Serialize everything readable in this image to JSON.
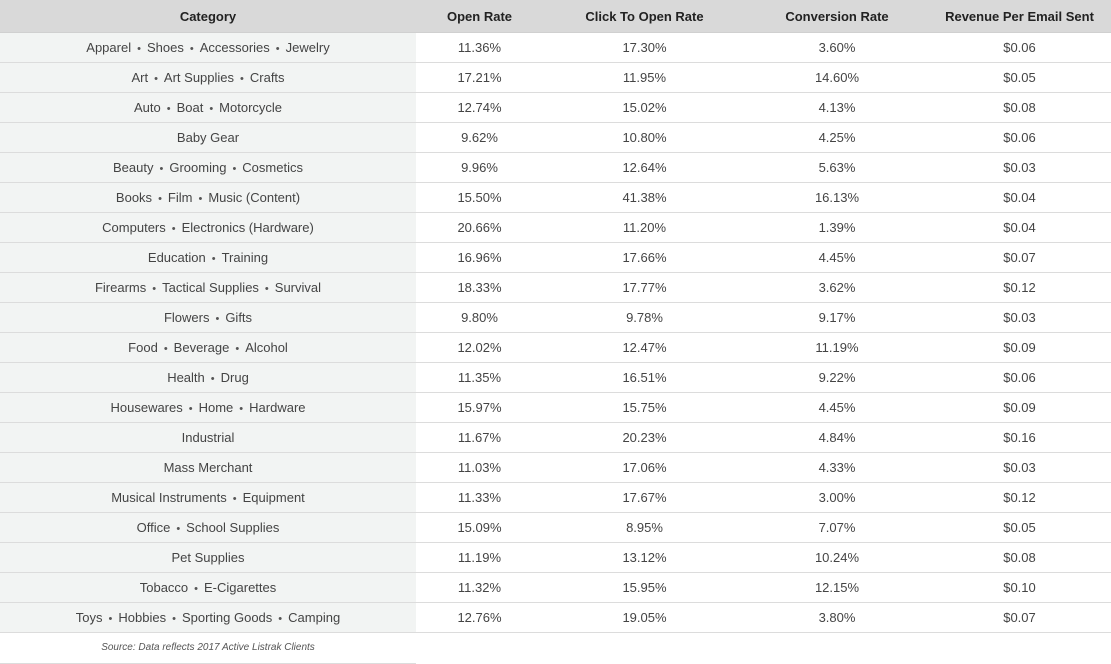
{
  "table": {
    "headers": [
      "Category",
      "Open Rate",
      "Click To Open Rate",
      "Conversion Rate",
      "Revenue Per Email Sent"
    ],
    "rows": [
      {
        "category": [
          "Apparel",
          "Shoes",
          "Accessories",
          "Jewelry"
        ],
        "open_rate": "11.36%",
        "ctor": "17.30%",
        "conversion": "3.60%",
        "revenue": "$0.06"
      },
      {
        "category": [
          "Art",
          "Art Supplies",
          "Crafts"
        ],
        "open_rate": "17.21%",
        "ctor": "11.95%",
        "conversion": "14.60%",
        "revenue": "$0.05"
      },
      {
        "category": [
          "Auto",
          "Boat",
          "Motorcycle"
        ],
        "open_rate": "12.74%",
        "ctor": "15.02%",
        "conversion": "4.13%",
        "revenue": "$0.08"
      },
      {
        "category": [
          "Baby Gear"
        ],
        "open_rate": "9.62%",
        "ctor": "10.80%",
        "conversion": "4.25%",
        "revenue": "$0.06"
      },
      {
        "category": [
          "Beauty",
          "Grooming",
          "Cosmetics"
        ],
        "open_rate": "9.96%",
        "ctor": "12.64%",
        "conversion": "5.63%",
        "revenue": "$0.03"
      },
      {
        "category": [
          "Books",
          "Film",
          "Music (Content)"
        ],
        "open_rate": "15.50%",
        "ctor": "41.38%",
        "conversion": "16.13%",
        "revenue": "$0.04"
      },
      {
        "category": [
          "Computers",
          "Electronics (Hardware)"
        ],
        "open_rate": "20.66%",
        "ctor": "11.20%",
        "conversion": "1.39%",
        "revenue": "$0.04"
      },
      {
        "category": [
          "Education",
          "Training"
        ],
        "open_rate": "16.96%",
        "ctor": "17.66%",
        "conversion": "4.45%",
        "revenue": "$0.07"
      },
      {
        "category": [
          "Firearms",
          "Tactical Supplies",
          "Survival"
        ],
        "open_rate": "18.33%",
        "ctor": "17.77%",
        "conversion": "3.62%",
        "revenue": "$0.12"
      },
      {
        "category": [
          "Flowers",
          "Gifts"
        ],
        "open_rate": "9.80%",
        "ctor": "9.78%",
        "conversion": "9.17%",
        "revenue": "$0.03"
      },
      {
        "category": [
          "Food",
          "Beverage",
          "Alcohol"
        ],
        "open_rate": "12.02%",
        "ctor": "12.47%",
        "conversion": "11.19%",
        "revenue": "$0.09"
      },
      {
        "category": [
          "Health",
          "Drug"
        ],
        "open_rate": "11.35%",
        "ctor": "16.51%",
        "conversion": "9.22%",
        "revenue": "$0.06"
      },
      {
        "category": [
          "Housewares",
          "Home",
          "Hardware"
        ],
        "open_rate": "15.97%",
        "ctor": "15.75%",
        "conversion": "4.45%",
        "revenue": "$0.09"
      },
      {
        "category": [
          "Industrial"
        ],
        "open_rate": "11.67%",
        "ctor": "20.23%",
        "conversion": "4.84%",
        "revenue": "$0.16"
      },
      {
        "category": [
          "Mass Merchant"
        ],
        "open_rate": "11.03%",
        "ctor": "17.06%",
        "conversion": "4.33%",
        "revenue": "$0.03"
      },
      {
        "category": [
          "Musical Instruments",
          "Equipment"
        ],
        "open_rate": "11.33%",
        "ctor": "17.67%",
        "conversion": "3.00%",
        "revenue": "$0.12"
      },
      {
        "category": [
          "Office",
          "School Supplies"
        ],
        "open_rate": "15.09%",
        "ctor": "8.95%",
        "conversion": "7.07%",
        "revenue": "$0.05"
      },
      {
        "category": [
          "Pet Supplies"
        ],
        "open_rate": "11.19%",
        "ctor": "13.12%",
        "conversion": "10.24%",
        "revenue": "$0.08"
      },
      {
        "category": [
          "Tobacco",
          "E-Cigarettes"
        ],
        "open_rate": "11.32%",
        "ctor": "15.95%",
        "conversion": "12.15%",
        "revenue": "$0.10"
      },
      {
        "category": [
          "Toys",
          "Hobbies",
          "Sporting Goods",
          "Camping"
        ],
        "open_rate": "12.76%",
        "ctor": "19.05%",
        "conversion": "3.80%",
        "revenue": "$0.07"
      }
    ],
    "separator": "•"
  },
  "footer": {
    "source": "Source: Data reflects 2017 Active Listrak Clients"
  }
}
